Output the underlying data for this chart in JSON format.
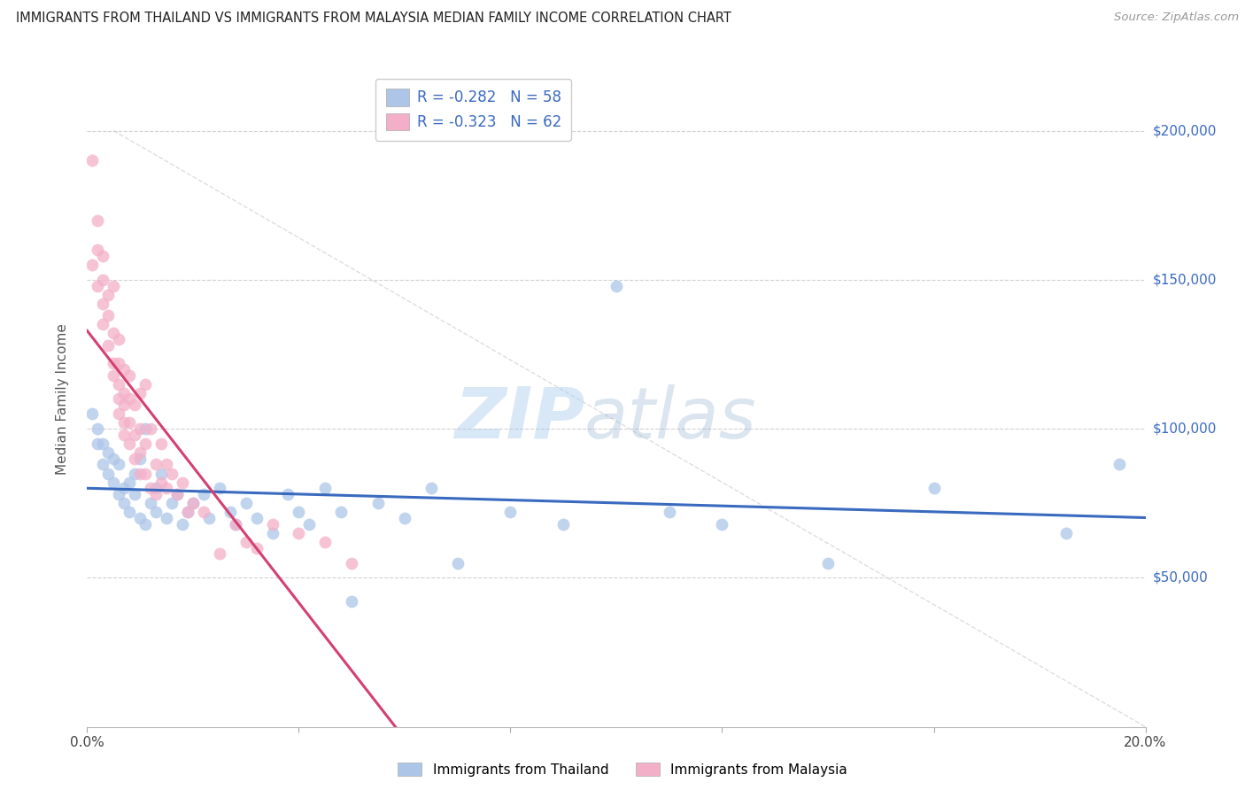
{
  "title": "IMMIGRANTS FROM THAILAND VS IMMIGRANTS FROM MALAYSIA MEDIAN FAMILY INCOME CORRELATION CHART",
  "source": "Source: ZipAtlas.com",
  "ylabel": "Median Family Income",
  "xlim": [
    0.0,
    0.2
  ],
  "ylim": [
    0,
    220000
  ],
  "y_ticks": [
    50000,
    100000,
    150000,
    200000
  ],
  "y_tick_labels": [
    "$50,000",
    "$100,000",
    "$150,000",
    "$200,000"
  ],
  "legend_r_thailand": "-0.282",
  "legend_n_thailand": "58",
  "legend_r_malaysia": "-0.323",
  "legend_n_malaysia": "62",
  "color_thailand": "#adc6e8",
  "color_malaysia": "#f4afc8",
  "line_color_thailand": "#3a6abf",
  "line_color_malaysia": "#d44070",
  "line_color_diagonal": "#d0d0d0",
  "watermark_zip": "ZIP",
  "watermark_atlas": "atlas",
  "background_color": "#ffffff",
  "thailand_x": [
    0.001,
    0.002,
    0.002,
    0.003,
    0.003,
    0.004,
    0.004,
    0.005,
    0.005,
    0.006,
    0.006,
    0.007,
    0.007,
    0.008,
    0.008,
    0.009,
    0.009,
    0.01,
    0.01,
    0.011,
    0.011,
    0.012,
    0.013,
    0.013,
    0.014,
    0.015,
    0.016,
    0.017,
    0.018,
    0.019,
    0.02,
    0.022,
    0.023,
    0.025,
    0.027,
    0.028,
    0.03,
    0.032,
    0.035,
    0.038,
    0.04,
    0.042,
    0.045,
    0.048,
    0.05,
    0.055,
    0.06,
    0.065,
    0.07,
    0.08,
    0.09,
    0.1,
    0.11,
    0.12,
    0.14,
    0.16,
    0.185,
    0.195
  ],
  "thailand_y": [
    105000,
    95000,
    100000,
    88000,
    95000,
    85000,
    92000,
    90000,
    82000,
    88000,
    78000,
    80000,
    75000,
    82000,
    72000,
    85000,
    78000,
    70000,
    90000,
    68000,
    100000,
    75000,
    80000,
    72000,
    85000,
    70000,
    75000,
    78000,
    68000,
    72000,
    75000,
    78000,
    70000,
    80000,
    72000,
    68000,
    75000,
    70000,
    65000,
    78000,
    72000,
    68000,
    80000,
    72000,
    42000,
    75000,
    70000,
    80000,
    55000,
    72000,
    68000,
    148000,
    72000,
    68000,
    55000,
    80000,
    65000,
    88000
  ],
  "malaysia_x": [
    0.001,
    0.001,
    0.002,
    0.002,
    0.002,
    0.003,
    0.003,
    0.003,
    0.003,
    0.004,
    0.004,
    0.004,
    0.005,
    0.005,
    0.005,
    0.005,
    0.006,
    0.006,
    0.006,
    0.006,
    0.006,
    0.007,
    0.007,
    0.007,
    0.007,
    0.007,
    0.008,
    0.008,
    0.008,
    0.008,
    0.009,
    0.009,
    0.009,
    0.01,
    0.01,
    0.01,
    0.01,
    0.011,
    0.011,
    0.011,
    0.012,
    0.012,
    0.013,
    0.013,
    0.014,
    0.014,
    0.015,
    0.015,
    0.016,
    0.017,
    0.018,
    0.019,
    0.02,
    0.022,
    0.025,
    0.028,
    0.03,
    0.032,
    0.035,
    0.04,
    0.045,
    0.05
  ],
  "malaysia_y": [
    190000,
    155000,
    170000,
    160000,
    148000,
    158000,
    150000,
    142000,
    135000,
    145000,
    138000,
    128000,
    148000,
    132000,
    122000,
    118000,
    130000,
    122000,
    115000,
    110000,
    105000,
    120000,
    112000,
    108000,
    102000,
    98000,
    118000,
    110000,
    102000,
    95000,
    108000,
    98000,
    90000,
    112000,
    100000,
    92000,
    85000,
    115000,
    95000,
    85000,
    100000,
    80000,
    88000,
    78000,
    95000,
    82000,
    88000,
    80000,
    85000,
    78000,
    82000,
    72000,
    75000,
    72000,
    58000,
    68000,
    62000,
    60000,
    68000,
    65000,
    62000,
    55000
  ]
}
